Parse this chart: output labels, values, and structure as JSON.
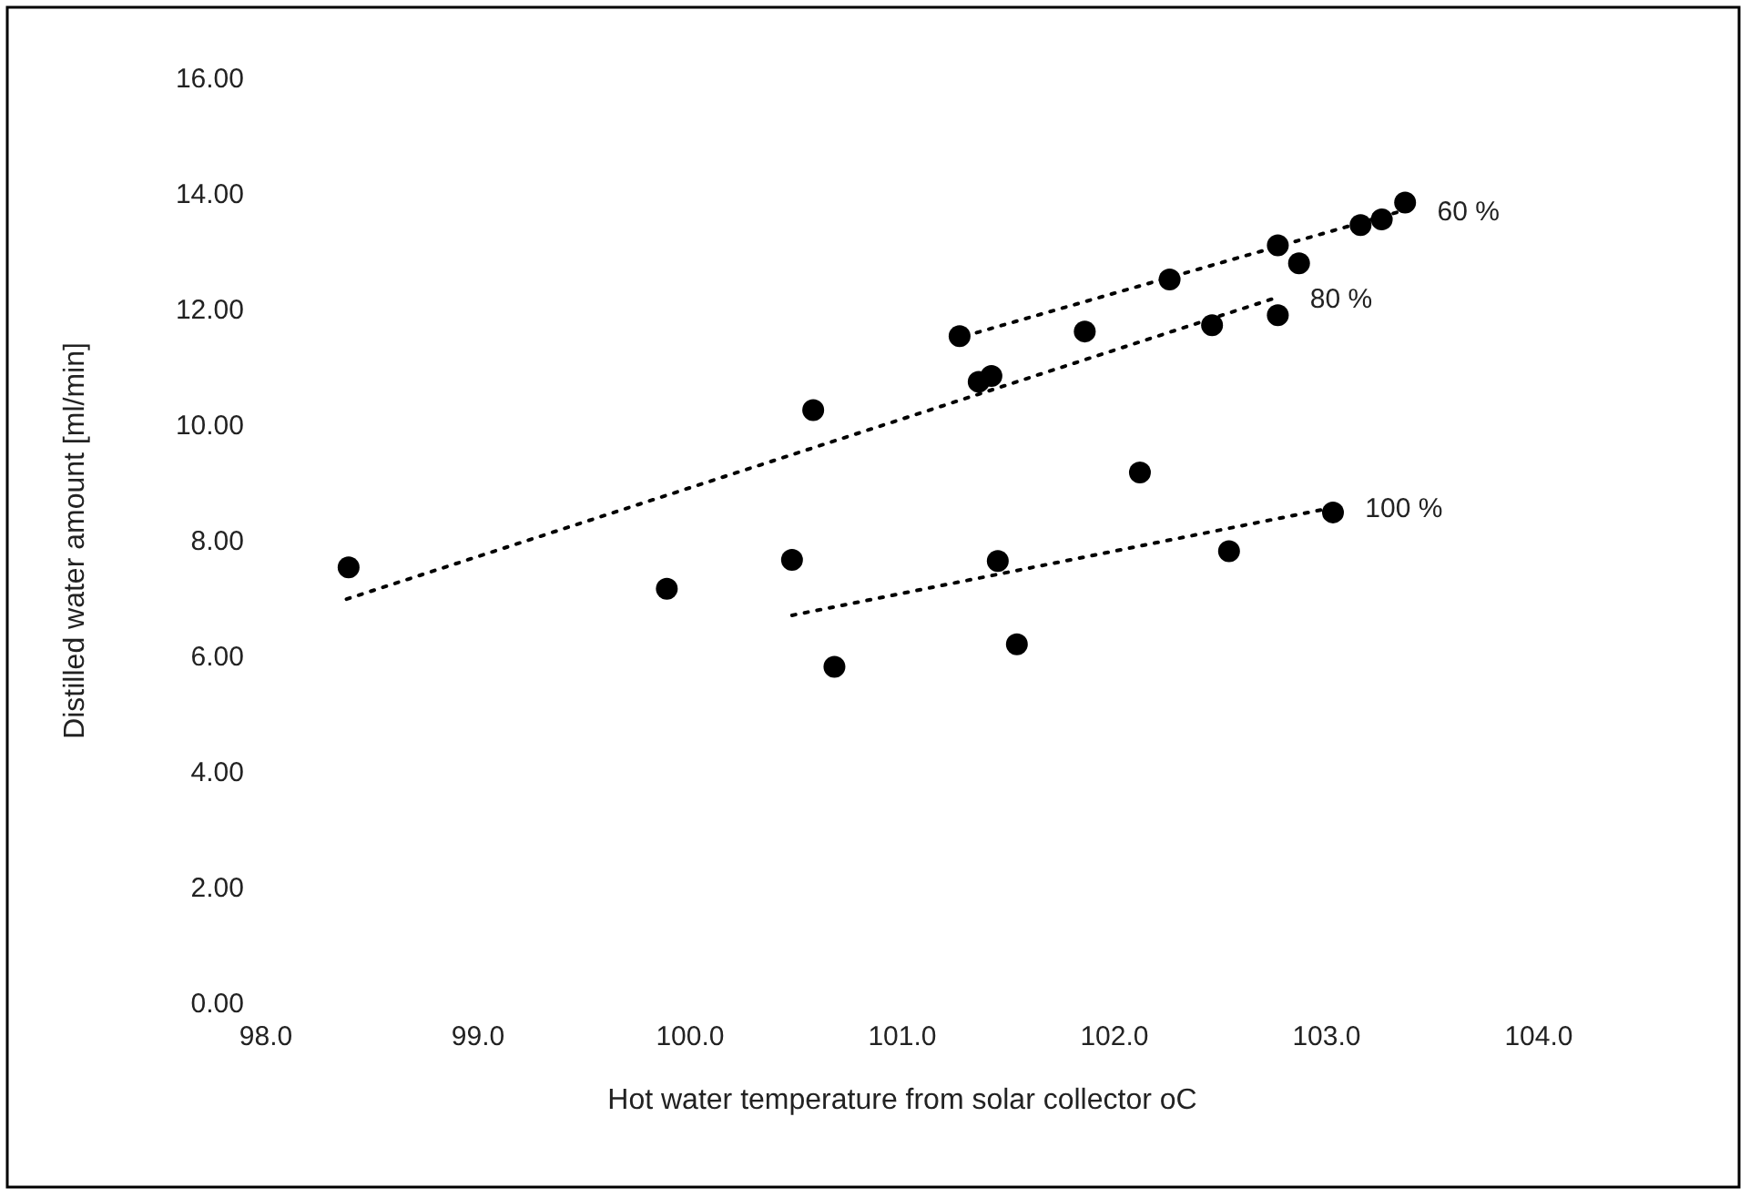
{
  "chart_data": {
    "type": "scatter",
    "xlabel": "Hot water temperature from solar collector oC",
    "ylabel": "Distilled water amount [ml/min]",
    "xlim": [
      98,
      104
    ],
    "xticks": [
      {
        "value": 98,
        "label": "98.0"
      },
      {
        "value": 99,
        "label": "99.0"
      },
      {
        "value": 100,
        "label": "100.0"
      },
      {
        "value": 101,
        "label": "101.0"
      },
      {
        "value": 102,
        "label": "102.0"
      },
      {
        "value": 103,
        "label": "103.0"
      },
      {
        "value": 104,
        "label": "104.0"
      }
    ],
    "ylim": [
      0,
      16
    ],
    "yticks": [
      {
        "value": 0,
        "label": "0.00"
      },
      {
        "value": 2,
        "label": "2.00"
      },
      {
        "value": 4,
        "label": "4.00"
      },
      {
        "value": 6,
        "label": "6.00"
      },
      {
        "value": 8,
        "label": "8.00"
      },
      {
        "value": 10,
        "label": "10.00"
      },
      {
        "value": 12,
        "label": "12.00"
      },
      {
        "value": 14,
        "label": "14.00"
      },
      {
        "value": 16,
        "label": "16.00"
      }
    ],
    "grid": false,
    "series": [
      {
        "color": "#000000",
        "marker": "circle",
        "x": [
          98.39,
          99.89,
          100.58,
          100.48,
          100.68,
          101.27,
          101.86,
          102.26,
          102.77,
          102.87,
          103.16,
          103.26,
          103.37,
          101.36,
          101.42,
          102.46,
          102.77,
          102.12,
          101.45,
          102.54,
          103.03,
          101.54
        ],
        "values": [
          7.54,
          7.17,
          10.26,
          7.67,
          5.82,
          11.54,
          11.62,
          12.52,
          13.11,
          12.8,
          13.46,
          13.56,
          13.85,
          10.75,
          10.85,
          11.73,
          11.9,
          9.18,
          7.65,
          7.82,
          8.49,
          6.21
        ]
      },
      {
        "type": "line",
        "name": "60 %",
        "color": "#000000",
        "marker": "none",
        "line_style": "dotted",
        "x": [
          101.35,
          103.35
        ],
        "values": [
          11.6,
          13.7
        ]
      },
      {
        "type": "line",
        "name": "80 %",
        "color": "#000000",
        "marker": "none",
        "line_style": "dotted",
        "x": [
          98.38,
          102.75
        ],
        "values": [
          6.99,
          12.19
        ]
      },
      {
        "type": "line",
        "name": "100 %",
        "color": "#000000",
        "marker": "none",
        "line_style": "dotted",
        "x": [
          100.48,
          103.01
        ],
        "values": [
          6.71,
          8.56
        ]
      }
    ]
  }
}
